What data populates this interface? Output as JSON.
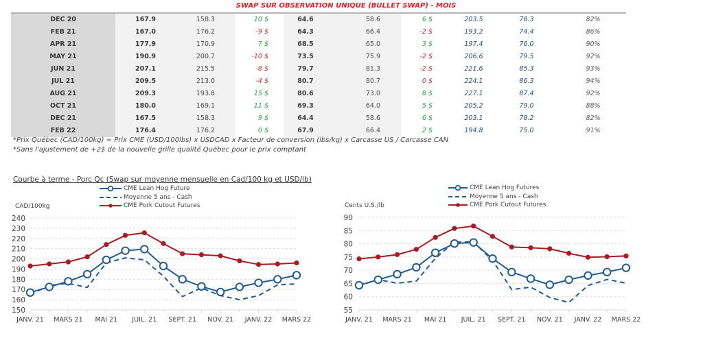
{
  "page": {
    "title": "SWAP SUR OBSERVATION UNIQUE (BULLET SWAP) - MOIS"
  },
  "colors": {
    "title": "#e21f26",
    "positive": "#1fa64a",
    "negative": "#e21f26",
    "usd_values": "#1f4e79",
    "lean_hog": "#1f5c94",
    "cutout": "#ab1a20",
    "grid": "#d9d9d9"
  },
  "table": {
    "rows": [
      {
        "cells": [
          "DEC 20",
          "167.9",
          "158.3",
          "10 $",
          "64.6",
          "58.6",
          "6 $",
          "203.5",
          "78.3",
          "82%"
        ],
        "tones": [
          "pos",
          "pos"
        ]
      },
      {
        "cells": [
          "FEB 21",
          "167.0",
          "176.2",
          "-9 $",
          "64.3",
          "66.4",
          "-2 $",
          "193.2",
          "74.4",
          "86%"
        ],
        "tones": [
          "neg",
          "neg"
        ]
      },
      {
        "cells": [
          "APR 21",
          "177.9",
          "170.9",
          "7 $",
          "68.5",
          "65.0",
          "3 $",
          "197.4",
          "76.0",
          "90%"
        ],
        "tones": [
          "pos",
          "pos"
        ]
      },
      {
        "cells": [
          "MAY 21",
          "190.9",
          "200.7",
          "-10 $",
          "73.5",
          "75.9",
          "-2 $",
          "206.6",
          "79.5",
          "92%"
        ],
        "tones": [
          "neg",
          "neg"
        ]
      },
      {
        "cells": [
          "JUN 21",
          "207.1",
          "215.5",
          "-8 $",
          "79.7",
          "81.3",
          "-2 $",
          "221.6",
          "85.3",
          "93%"
        ],
        "tones": [
          "neg",
          "neg"
        ]
      },
      {
        "cells": [
          "JUL 21",
          "209.5",
          "213.0",
          "-4 $",
          "80.7",
          "80.7",
          "0 $",
          "224.1",
          "86.3",
          "94%"
        ],
        "tones": [
          "neg",
          "neg"
        ]
      },
      {
        "cells": [
          "AUG 21",
          "209.3",
          "193.8",
          "15 $",
          "80.6",
          "73.0",
          "8 $",
          "227.1",
          "87.4",
          "92%"
        ],
        "tones": [
          "pos",
          "pos"
        ]
      },
      {
        "cells": [
          "OCT 21",
          "180.0",
          "169.1",
          "11 $",
          "69.3",
          "64.0",
          "5 $",
          "205.2",
          "79.0",
          "88%"
        ],
        "tones": [
          "pos",
          "pos"
        ]
      },
      {
        "cells": [
          "DEC 21",
          "167.5",
          "158.3",
          "9 $",
          "64.4",
          "58.6",
          "6 $",
          "203.1",
          "78.2",
          "82%"
        ],
        "tones": [
          "pos",
          "pos"
        ]
      },
      {
        "cells": [
          "FEB 22",
          "176.4",
          "176.2",
          "0 $",
          "67.9",
          "66.4",
          "2 $",
          "194.8",
          "75.0",
          "91%"
        ],
        "tones": [
          "pos",
          "pos"
        ]
      }
    ]
  },
  "footnotes": [
    "*Prix Québec (CAD/100kg) = Prix CME (USD/100lbs) x USDCAD x Facteur de conversion (lbs/kg) x Carcasse US / Carcasse CAN",
    "*Sans l'ajustement de +2$ de la nouvelle grille qualité Québec pour le prix comptant"
  ],
  "chart_section": {
    "title": "Courbe à terme - Porc Qc (Swap sur moyenne mensuelle en Cad/100 kg et USD/lb)"
  },
  "chart_data": [
    {
      "type": "line",
      "title": "Courbe à terme - Porc Qc (Swap sur moyenne mensuelle en Cad/100 kg et USD/lb)",
      "xlabel": "",
      "ylabel": "CAD/100kg",
      "x": [
        "JANV. 21",
        "FÉVR. 21",
        "MARS 21",
        "AVR. 21",
        "MAI 21",
        "JUIN 21",
        "JUIL. 21",
        "AOÛT 21",
        "SEPT. 21",
        "OCT. 21",
        "NOV. 21",
        "DÉC. 21",
        "JANV. 22",
        "FÉVR. 22",
        "MARS 22"
      ],
      "label_every": 2,
      "ylim": [
        150,
        240
      ],
      "yticks": [
        150,
        160,
        170,
        180,
        190,
        200,
        210,
        220,
        230,
        240
      ],
      "grid": true,
      "legend": "top-center",
      "series": [
        {
          "name": "CME Lean Hog Future",
          "line": "solid",
          "marker": "open-circle",
          "color_key": "lean_hog",
          "values": [
            167,
            172.5,
            178,
            185,
            199,
            208,
            209.5,
            193,
            180,
            173,
            167.5,
            172.5,
            176.5,
            180,
            184
          ]
        },
        {
          "name": "Moyenne 5 ans - Cash",
          "line": "dashed",
          "marker": "none",
          "color_key": "lean_hog",
          "values": [
            165,
            174,
            176,
            172,
            196,
            201,
            199,
            183,
            163,
            171.5,
            164,
            160,
            164,
            174.5,
            175.5
          ]
        },
        {
          "name": "CME Pork Cutout Futures",
          "line": "solid",
          "marker": "filled-circle",
          "color_key": "cutout",
          "values": [
            193,
            195,
            197,
            202,
            214,
            223,
            225.5,
            215,
            205,
            204,
            203,
            198,
            194.5,
            195,
            196
          ]
        }
      ]
    },
    {
      "type": "line",
      "title": "Courbe à terme - Porc Qc (Swap sur moyenne mensuelle en Cad/100 kg et USD/lb)",
      "xlabel": "",
      "ylabel": "Cents U.S./lb",
      "x": [
        "JANV. 21",
        "FÉVR. 21",
        "MARS 21",
        "AVR. 21",
        "MAI 21",
        "JUIN 21",
        "JUIL. 21",
        "AOÛT 21",
        "SEPT. 21",
        "OCT. 21",
        "NOV. 21",
        "DÉC. 21",
        "JANV. 22",
        "FÉVR. 22",
        "MARS 22"
      ],
      "label_every": 2,
      "ylim": [
        55,
        90
      ],
      "yticks": [
        55,
        60,
        65,
        70,
        75,
        80,
        85,
        90
      ],
      "grid": true,
      "legend": "top-center",
      "series": [
        {
          "name": "CME Lean Hog Futures",
          "line": "solid",
          "marker": "open-circle",
          "color_key": "lean_hog",
          "values": [
            64.3,
            66.4,
            68.5,
            71.1,
            76.6,
            80.1,
            80.5,
            74.4,
            69.3,
            66.8,
            64.5,
            66.4,
            68.0,
            69.3,
            70.9
          ]
        },
        {
          "name": "Moyenne 5 ans - Cash",
          "line": "dashed",
          "marker": "none",
          "color_key": "lean_hog",
          "values": [
            64.3,
            66.4,
            65.1,
            65.9,
            74.5,
            80.7,
            80.7,
            73.7,
            62.7,
            63.6,
            59.7,
            57.8,
            64.2,
            66.5,
            65.1
          ]
        },
        {
          "name": "CME Pork Cutout Futures",
          "line": "solid",
          "marker": "filled-circle",
          "color_key": "cutout",
          "values": [
            74.3,
            75.0,
            75.9,
            77.9,
            82.4,
            85.8,
            86.7,
            82.8,
            78.8,
            78.5,
            78.1,
            76.4,
            74.9,
            75.1,
            75.4
          ]
        }
      ]
    }
  ]
}
